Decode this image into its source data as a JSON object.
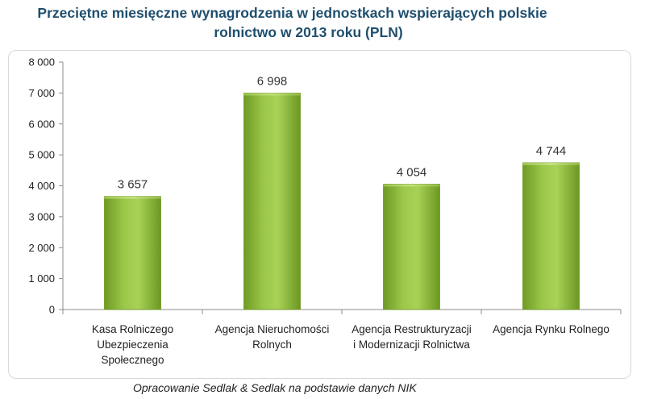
{
  "chart_data": {
    "type": "bar",
    "title_lines": [
      "Przeciętne miesięczne wynagrodzenia w jednostkach wspierających polskie",
      "rolnictwo w 2013 roku (PLN)"
    ],
    "categories": [
      [
        "Kasa Rolniczego",
        "Ubezpieczenia",
        "Społecznego"
      ],
      [
        "Agencja Nieruchomości",
        "Rolnych"
      ],
      [
        "Agencja Restrukturyzacji",
        "i Modernizacji Rolnictwa"
      ],
      [
        "Agencja Rynku Rolnego"
      ]
    ],
    "values": [
      3657,
      6998,
      4054,
      4744
    ],
    "value_labels": [
      "3 657",
      "6 998",
      "4 054",
      "4 744"
    ],
    "y_ticks": [
      "0",
      "1 000",
      "2 000",
      "3 000",
      "4 000",
      "5 000",
      "6 000",
      "7 000",
      "8 000"
    ],
    "ylim": [
      0,
      8000
    ],
    "grid": false,
    "bar_color": "#8ab43a"
  },
  "source": "Opracowanie Sedlak & Sedlak na podstawie danych NIK"
}
